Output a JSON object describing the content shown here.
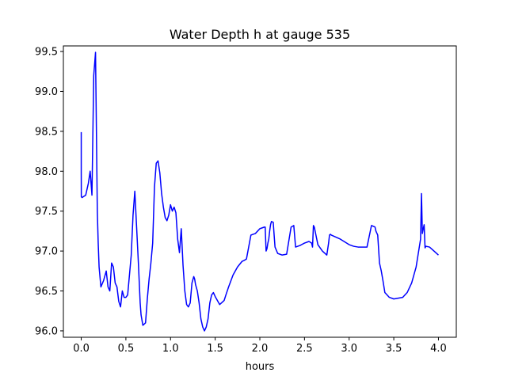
{
  "chart_data": {
    "type": "line",
    "title": "Water Depth h at gauge 535",
    "xlabel": "hours",
    "ylabel": "",
    "xlim": [
      -0.2,
      4.2
    ],
    "ylim": [
      95.92,
      99.57
    ],
    "xticks": [
      0.0,
      0.5,
      1.0,
      1.5,
      2.0,
      2.5,
      3.0,
      3.5,
      4.0
    ],
    "xtick_labels": [
      "0.0",
      "0.5",
      "1.0",
      "1.5",
      "2.0",
      "2.5",
      "3.0",
      "3.5",
      "4.0"
    ],
    "yticks": [
      96.0,
      96.5,
      97.0,
      97.5,
      98.0,
      98.5,
      99.0,
      99.5
    ],
    "ytick_labels": [
      "96.0",
      "96.5",
      "97.0",
      "97.5",
      "98.0",
      "98.5",
      "99.0",
      "99.5"
    ],
    "grid": false,
    "legend": "none",
    "series": [
      {
        "color": "#0000ff",
        "x": [
          0.0,
          0.0,
          0.001,
          0.01,
          0.05,
          0.08,
          0.1,
          0.12,
          0.14,
          0.16,
          0.17,
          0.18,
          0.19,
          0.2,
          0.22,
          0.25,
          0.28,
          0.3,
          0.32,
          0.34,
          0.36,
          0.38,
          0.4,
          0.42,
          0.44,
          0.46,
          0.48,
          0.5,
          0.52,
          0.54,
          0.56,
          0.58,
          0.6,
          0.62,
          0.64,
          0.66,
          0.67,
          0.69,
          0.72,
          0.74,
          0.76,
          0.78,
          0.8,
          0.82,
          0.84,
          0.86,
          0.88,
          0.9,
          0.92,
          0.94,
          0.96,
          0.98,
          1.0,
          1.02,
          1.04,
          1.06,
          1.08,
          1.1,
          1.12,
          1.14,
          1.16,
          1.18,
          1.2,
          1.22,
          1.24,
          1.26,
          1.27,
          1.28,
          1.3,
          1.32,
          1.34,
          1.36,
          1.38,
          1.4,
          1.42,
          1.44,
          1.46,
          1.48,
          1.5,
          1.55,
          1.6,
          1.62,
          1.65,
          1.7,
          1.75,
          1.8,
          1.82,
          1.85,
          1.9,
          1.95,
          2.0,
          2.05,
          2.06,
          2.07,
          2.08,
          2.09,
          2.1,
          2.11,
          2.12,
          2.13,
          2.15,
          2.16,
          2.17,
          2.2,
          2.25,
          2.3,
          2.35,
          2.38,
          2.4,
          2.45,
          2.5,
          2.55,
          2.58,
          2.59,
          2.6,
          2.61,
          2.65,
          2.7,
          2.75,
          2.77,
          2.78,
          2.79,
          2.8,
          2.9,
          3.0,
          3.05,
          3.1,
          3.15,
          3.2,
          3.25,
          3.29,
          3.3,
          3.32,
          3.34,
          3.36,
          3.38,
          3.4,
          3.45,
          3.5,
          3.55,
          3.6,
          3.65,
          3.7,
          3.75,
          3.8,
          3.81,
          3.82,
          3.83,
          3.84,
          3.85,
          3.86,
          3.9,
          3.95,
          4.0
        ],
        "y": [
          98.49,
          97.98,
          97.68,
          97.67,
          97.7,
          97.85,
          98.0,
          97.7,
          99.2,
          99.49,
          98.5,
          97.5,
          97.1,
          96.8,
          96.55,
          96.63,
          96.75,
          96.55,
          96.5,
          96.85,
          96.8,
          96.6,
          96.55,
          96.37,
          96.3,
          96.5,
          96.42,
          96.42,
          96.45,
          96.7,
          96.95,
          97.45,
          97.75,
          97.3,
          96.85,
          96.35,
          96.2,
          96.07,
          96.1,
          96.4,
          96.65,
          96.85,
          97.1,
          97.8,
          98.1,
          98.13,
          97.98,
          97.72,
          97.55,
          97.42,
          97.38,
          97.45,
          97.58,
          97.5,
          97.55,
          97.48,
          97.15,
          96.98,
          97.28,
          96.82,
          96.5,
          96.33,
          96.3,
          96.35,
          96.6,
          96.68,
          96.65,
          96.58,
          96.5,
          96.35,
          96.15,
          96.05,
          96.0,
          96.05,
          96.15,
          96.35,
          96.45,
          96.48,
          96.43,
          96.33,
          96.38,
          96.45,
          96.55,
          96.7,
          96.8,
          96.87,
          96.88,
          96.9,
          97.2,
          97.22,
          97.28,
          97.3,
          97.3,
          97.0,
          97.03,
          97.1,
          97.15,
          97.25,
          97.33,
          97.37,
          97.36,
          97.2,
          97.05,
          96.97,
          96.95,
          96.96,
          97.3,
          97.32,
          97.05,
          97.07,
          97.1,
          97.12,
          97.1,
          97.05,
          97.32,
          97.3,
          97.08,
          97.0,
          96.95,
          97.1,
          97.2,
          97.21,
          97.2,
          97.15,
          97.08,
          97.06,
          97.05,
          97.05,
          97.05,
          97.32,
          97.3,
          97.25,
          97.2,
          96.85,
          96.75,
          96.62,
          96.48,
          96.42,
          96.4,
          96.41,
          96.42,
          96.48,
          96.6,
          96.8,
          97.15,
          97.72,
          97.22,
          97.28,
          97.33,
          97.04,
          97.06,
          97.05,
          97.0,
          96.95
        ]
      }
    ]
  }
}
